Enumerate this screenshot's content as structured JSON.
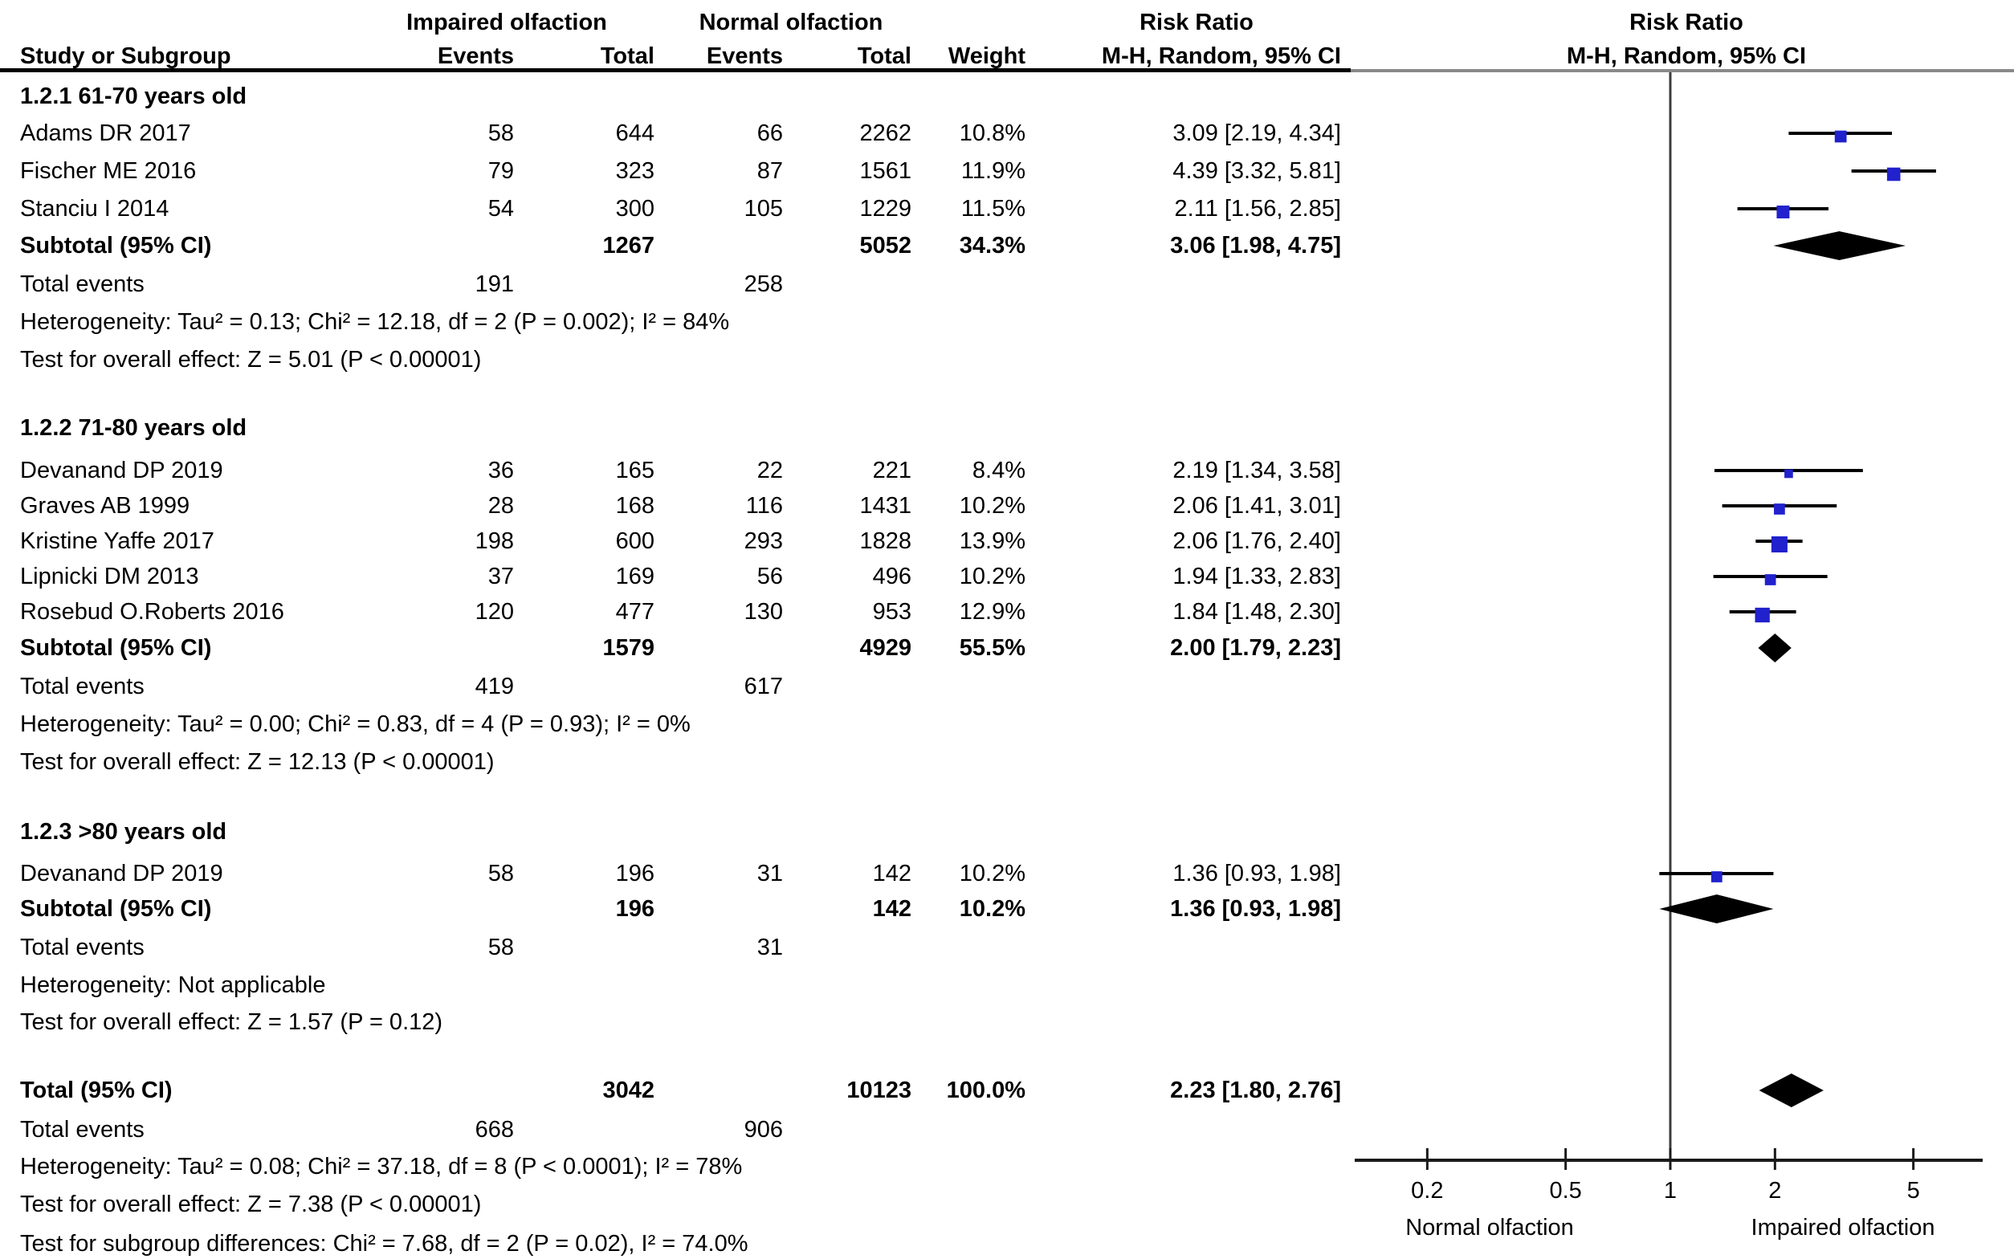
{
  "colors": {
    "marker_blue": "#2121cd",
    "diamond_black": "#000000",
    "line_black": "#000000",
    "rule_gray": "#8a8a8a",
    "axis_line": "#1a1a1a",
    "vline_gray": "#3c3c3c"
  },
  "chart_data": {
    "type": "forest",
    "group1": "Impaired olfaction",
    "group2": "Normal olfaction",
    "effect_header": "Risk Ratio",
    "method_header": "M-H, Random, 95% CI",
    "columns": {
      "study": "Study or Subgroup",
      "events1": "Events",
      "total1": "Total",
      "events2": "Events",
      "total2": "Total",
      "weight": "Weight",
      "mh": "M-H, Random, 95% CI"
    },
    "axis": {
      "scale": "log10",
      "xmin": 0.124,
      "xmax": 7.9,
      "ticks": [
        0.2,
        0.5,
        1,
        2,
        5
      ],
      "tick_labels": [
        "0.2",
        "0.5",
        "1",
        "2",
        "5"
      ],
      "left_label": "Normal olfaction",
      "right_label": "Impaired olfaction",
      "null_line": 1
    },
    "sections": [
      {
        "title": "1.2.1 61-70 years old",
        "studies": [
          {
            "label": "Adams DR 2017",
            "events1": "58",
            "total1": "644",
            "events2": "66",
            "total2": "2262",
            "weight": "10.8%",
            "weight_pct": 10.8,
            "ci_text": "3.09 [2.19, 4.34]",
            "rr": 3.09,
            "lo": 2.19,
            "hi": 4.34
          },
          {
            "label": "Fischer ME 2016",
            "events1": "79",
            "total1": "323",
            "events2": "87",
            "total2": "1561",
            "weight": "11.9%",
            "weight_pct": 11.9,
            "ci_text": "4.39 [3.32, 5.81]",
            "rr": 4.39,
            "lo": 3.32,
            "hi": 5.81
          },
          {
            "label": "Stanciu I 2014",
            "events1": "54",
            "total1": "300",
            "events2": "105",
            "total2": "1229",
            "weight": "11.5%",
            "weight_pct": 11.5,
            "ci_text": "2.11 [1.56, 2.85]",
            "rr": 2.11,
            "lo": 1.56,
            "hi": 2.85
          }
        ],
        "subtotal": {
          "label": "Subtotal (95% CI)",
          "total1": "1267",
          "total2": "5052",
          "weight": "34.3%",
          "ci_text": "3.06 [1.98, 4.75]",
          "rr": 3.06,
          "lo": 1.98,
          "hi": 4.75
        },
        "total_events": {
          "label": "Total events",
          "events1": "191",
          "events2": "258"
        },
        "heterogeneity": "Heterogeneity: Tau² = 0.13; Chi² = 12.18, df = 2 (P = 0.002); I² = 84%",
        "overall_effect": "Test for overall effect: Z = 5.01 (P < 0.00001)"
      },
      {
        "title": "1.2.2 71-80 years old",
        "studies": [
          {
            "label": "Devanand DP 2019",
            "events1": "36",
            "total1": "165",
            "events2": "22",
            "total2": "221",
            "weight": "8.4%",
            "weight_pct": 8.4,
            "ci_text": "2.19 [1.34, 3.58]",
            "rr": 2.19,
            "lo": 1.34,
            "hi": 3.58
          },
          {
            "label": "Graves AB 1999",
            "events1": "28",
            "total1": "168",
            "events2": "116",
            "total2": "1431",
            "weight": "10.2%",
            "weight_pct": 10.2,
            "ci_text": "2.06 [1.41, 3.01]",
            "rr": 2.06,
            "lo": 1.41,
            "hi": 3.01
          },
          {
            "label": "Kristine Yaffe 2017",
            "events1": "198",
            "total1": "600",
            "events2": "293",
            "total2": "1828",
            "weight": "13.9%",
            "weight_pct": 13.9,
            "ci_text": "2.06 [1.76, 2.40]",
            "rr": 2.06,
            "lo": 1.76,
            "hi": 2.4
          },
          {
            "label": "Lipnicki DM 2013",
            "events1": "37",
            "total1": "169",
            "events2": "56",
            "total2": "496",
            "weight": "10.2%",
            "weight_pct": 10.2,
            "ci_text": "1.94 [1.33, 2.83]",
            "rr": 1.94,
            "lo": 1.33,
            "hi": 2.83
          },
          {
            "label": "Rosebud O.Roberts 2016",
            "events1": "120",
            "total1": "477",
            "events2": "130",
            "total2": "953",
            "weight": "12.9%",
            "weight_pct": 12.9,
            "ci_text": "1.84 [1.48, 2.30]",
            "rr": 1.84,
            "lo": 1.48,
            "hi": 2.3
          }
        ],
        "subtotal": {
          "label": "Subtotal (95% CI)",
          "total1": "1579",
          "total2": "4929",
          "weight": "55.5%",
          "ci_text": "2.00 [1.79, 2.23]",
          "rr": 2.0,
          "lo": 1.79,
          "hi": 2.23
        },
        "total_events": {
          "label": "Total events",
          "events1": "419",
          "events2": "617"
        },
        "heterogeneity": "Heterogeneity: Tau² = 0.00; Chi² = 0.83, df = 4 (P = 0.93); I² = 0%",
        "overall_effect": "Test for overall effect: Z = 12.13 (P < 0.00001)"
      },
      {
        "title": "1.2.3 >80 years old",
        "studies": [
          {
            "label": "Devanand DP 2019",
            "events1": "58",
            "total1": "196",
            "events2": "31",
            "total2": "142",
            "weight": "10.2%",
            "weight_pct": 10.2,
            "ci_text": "1.36 [0.93, 1.98]",
            "rr": 1.36,
            "lo": 0.93,
            "hi": 1.98
          }
        ],
        "subtotal": {
          "label": "Subtotal (95% CI)",
          "total1": "196",
          "total2": "142",
          "weight": "10.2%",
          "ci_text": "1.36 [0.93, 1.98]",
          "rr": 1.36,
          "lo": 0.93,
          "hi": 1.98
        },
        "total_events": {
          "label": "Total events",
          "events1": "58",
          "events2": "31"
        },
        "heterogeneity": "Heterogeneity: Not applicable",
        "overall_effect": "Test for overall effect: Z = 1.57 (P = 0.12)"
      }
    ],
    "total": {
      "label": "Total (95% CI)",
      "total1": "3042",
      "total2": "10123",
      "weight": "100.0%",
      "ci_text": "2.23 [1.80, 2.76]",
      "rr": 2.23,
      "lo": 1.8,
      "hi": 2.76,
      "total_events": {
        "label": "Total events",
        "events1": "668",
        "events2": "906"
      },
      "heterogeneity": "Heterogeneity: Tau² = 0.08; Chi² = 37.18, df = 8 (P < 0.0001); I² = 78%",
      "overall_effect": "Test for overall effect: Z = 7.38 (P < 0.00001)",
      "subgroup_differences": "Test for subgroup differences: Chi² = 7.68, df = 2 (P = 0.02), I² = 74.0%"
    }
  }
}
